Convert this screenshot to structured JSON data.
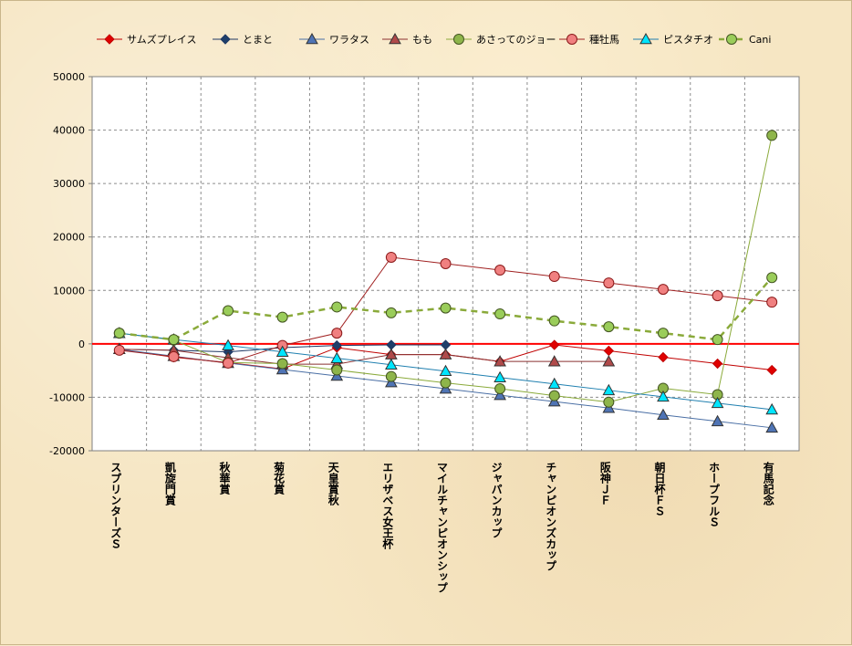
{
  "chart_data": {
    "type": "line",
    "title": "",
    "xlabel": "",
    "ylabel": "",
    "ylim": [
      -20000,
      50000
    ],
    "yticks": [
      -20000,
      -10000,
      0,
      10000,
      20000,
      30000,
      40000,
      50000
    ],
    "grid": true,
    "legend_position": "top",
    "categories": [
      "スプリンターズＳ",
      "凱旋門賞",
      "秋華賞",
      "菊花賞",
      "天皇賞秋",
      "エリザベス女王杯",
      "マイルチャンピオンシップ",
      "ジャパンカップ",
      "チャンピオンズカップ",
      "阪神ＪＦ",
      "朝日杯ＦＳ",
      "ホープフルＳ",
      "有馬記念"
    ],
    "series": [
      {
        "name": "サムズプレイス",
        "color": "#c00000",
        "fill": "#e00000",
        "marker": "diamond",
        "dashed": false,
        "values": [
          -1000,
          -2500,
          -3500,
          -4700,
          -700,
          -2000,
          -2000,
          -3300,
          -200,
          -1300,
          -2500,
          -3700,
          -4900
        ]
      },
      {
        "name": "とまと",
        "color": "#1f3864",
        "fill": "#1f3f6b",
        "marker": "diamond",
        "dashed": false,
        "values": [
          -1000,
          -1200,
          -1500,
          -700,
          -300,
          -200,
          -200,
          null,
          null,
          null,
          null,
          null,
          null
        ]
      },
      {
        "name": "ワラタス",
        "color": "#4a6fa5",
        "fill": "#4f74b5",
        "marker": "triangle",
        "dashed": false,
        "values": [
          -1000,
          -2300,
          -3600,
          -4800,
          -6000,
          -7200,
          -8400,
          -9600,
          -10800,
          -12000,
          -13300,
          -14500,
          -15700
        ]
      },
      {
        "name": "もも",
        "color": "#8b3030",
        "fill": "#b04a4a",
        "marker": "triangle",
        "dashed": false,
        "values": [
          -1000,
          -1200,
          -2600,
          -3800,
          -3800,
          -2000,
          -2000,
          -3300,
          -3300,
          -3300,
          null,
          null,
          null
        ]
      },
      {
        "name": "あさってのジョー",
        "color": "#8aaa3a",
        "fill": "#8eb54a",
        "marker": "circle",
        "dashed": false,
        "values": [
          2000,
          700,
          -3500,
          -3700,
          -4900,
          -6100,
          -7300,
          -8400,
          -9700,
          -10900,
          -8300,
          -9500,
          39000
        ]
      },
      {
        "name": "種牡馬",
        "color": "#a02020",
        "fill": "#f08080",
        "marker": "circle",
        "dashed": false,
        "values": [
          -1200,
          -2400,
          -3600,
          -300,
          2000,
          16200,
          15000,
          13800,
          12600,
          11400,
          10200,
          9000,
          7800
        ]
      },
      {
        "name": "ピスタチオ",
        "color": "#2080b0",
        "fill": "#00e5ff",
        "marker": "triangle",
        "dashed": false,
        "values": [
          2000,
          800,
          -300,
          -1500,
          -2700,
          -3900,
          -5100,
          -6300,
          -7500,
          -8700,
          -9900,
          -11100,
          -12300
        ]
      },
      {
        "name": "Cani",
        "color": "#8aaa3a",
        "fill": "#9acd5a",
        "marker": "circle",
        "dashed": true,
        "values": [
          2000,
          800,
          6200,
          5000,
          6900,
          5800,
          6700,
          5600,
          4300,
          3200,
          2000,
          800,
          12400
        ]
      }
    ]
  }
}
